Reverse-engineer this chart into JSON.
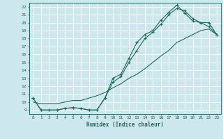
{
  "xlabel": "Humidex (Indice chaleur)",
  "bg_color": "#cce8ee",
  "line_color": "#1e6b5a",
  "grid_color": "#b0d8e0",
  "xlim": [
    -0.5,
    23.5
  ],
  "ylim": [
    8.5,
    22.5
  ],
  "yticks": [
    9,
    10,
    11,
    12,
    13,
    14,
    15,
    16,
    17,
    18,
    19,
    20,
    21,
    22
  ],
  "xticks": [
    0,
    1,
    2,
    3,
    4,
    5,
    6,
    7,
    8,
    9,
    10,
    11,
    12,
    13,
    14,
    15,
    16,
    17,
    18,
    19,
    20,
    21,
    22,
    23
  ],
  "line1_x": [
    0,
    1,
    2,
    3,
    4,
    5,
    6,
    7,
    8,
    9,
    10,
    11,
    12,
    13,
    14,
    15,
    16,
    17,
    18,
    19,
    20,
    21,
    22,
    23
  ],
  "line1_y": [
    10.5,
    9.0,
    9.0,
    9.0,
    9.2,
    9.3,
    9.2,
    9.0,
    9.0,
    10.5,
    13.0,
    13.5,
    15.5,
    17.5,
    18.5,
    19.0,
    20.3,
    21.3,
    22.2,
    21.2,
    20.2,
    20.0,
    19.5,
    18.5
  ],
  "line2_x": [
    0,
    1,
    2,
    3,
    4,
    5,
    6,
    7,
    8,
    9,
    10,
    11,
    12,
    13,
    14,
    15,
    16,
    17,
    18,
    19,
    20,
    21,
    22,
    23
  ],
  "line2_y": [
    10.5,
    9.0,
    9.0,
    9.0,
    9.2,
    9.3,
    9.2,
    9.0,
    9.0,
    10.5,
    12.5,
    13.2,
    15.0,
    16.5,
    18.0,
    18.8,
    19.8,
    21.0,
    21.8,
    21.5,
    20.5,
    20.0,
    20.0,
    18.5
  ],
  "line3_x": [
    0,
    1,
    2,
    3,
    4,
    5,
    6,
    7,
    8,
    9,
    10,
    11,
    12,
    13,
    14,
    15,
    16,
    17,
    18,
    19,
    20,
    21,
    22,
    23
  ],
  "line3_y": [
    10.0,
    9.8,
    9.8,
    9.8,
    10.0,
    10.2,
    10.2,
    10.5,
    10.8,
    11.2,
    11.8,
    12.3,
    13.0,
    13.5,
    14.2,
    15.0,
    15.8,
    16.5,
    17.5,
    18.0,
    18.5,
    19.0,
    19.2,
    18.5
  ]
}
